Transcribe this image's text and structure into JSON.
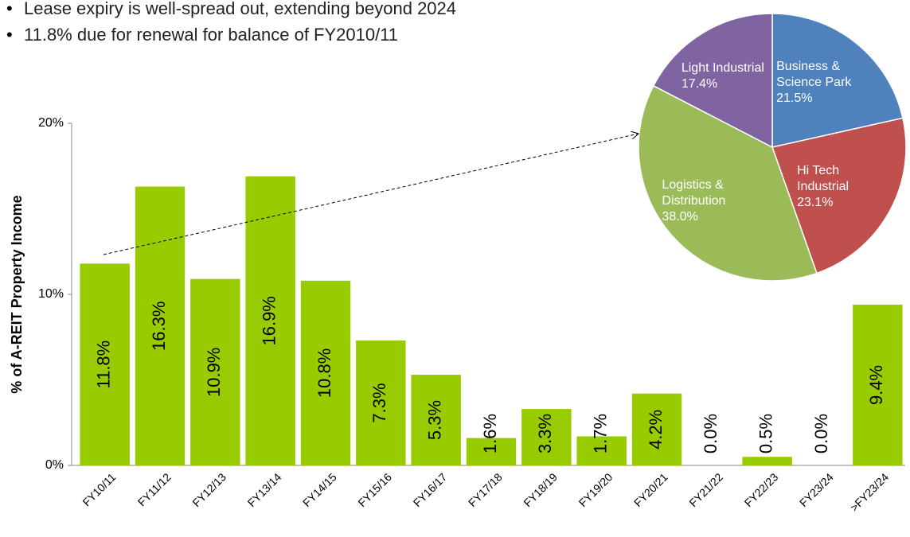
{
  "bullets": [
    "Lease expiry is well-spread out, extending beyond 2024",
    "11.8% due for renewal for balance of FY2010/11"
  ],
  "chart_data": [
    {
      "type": "bar",
      "ylabel": "% of A-REIT Property Income",
      "color": "#99cc00",
      "categories": [
        "FY10/11",
        "FY11/12",
        "FY12/13",
        "FY13/14",
        "FY14/15",
        "FY15/16",
        "FY16/17",
        "FY17/18",
        "FY18/19",
        "FY19/20",
        "FY20/21",
        "FY21/22",
        "FY22/23",
        "FY23/24",
        ">FY23/24"
      ],
      "values": [
        11.8,
        16.3,
        10.9,
        16.9,
        10.8,
        7.3,
        5.3,
        1.6,
        3.3,
        1.7,
        4.2,
        0.0,
        0.5,
        0.0,
        9.4
      ],
      "value_labels": [
        "11.8%",
        "16.3%",
        "10.9%",
        "16.9%",
        "10.8%",
        "7.3%",
        "5.3%",
        "1.6%",
        "3.3%",
        "1.7%",
        "4.2%",
        "0.0%",
        "0.5%",
        "0.0%",
        "9.4%"
      ],
      "ylim": [
        0,
        20
      ],
      "yticks": [
        {
          "value": 0,
          "label": "0%"
        },
        {
          "value": 10,
          "label": "10%"
        },
        {
          "value": 20,
          "label": "20%"
        }
      ]
    },
    {
      "type": "pie",
      "categories": [
        "Business & Science Park",
        "Hi Tech Industrial",
        "Logistics & Distribution",
        "Light Industrial"
      ],
      "values": [
        21.5,
        23.1,
        38.0,
        17.4
      ],
      "value_labels": [
        "21.5%",
        "23.1%",
        "38.0%",
        "17.4%"
      ],
      "colors": [
        "#4f81bd",
        "#c0504d",
        "#9bbb59",
        "#8064a2"
      ]
    }
  ]
}
